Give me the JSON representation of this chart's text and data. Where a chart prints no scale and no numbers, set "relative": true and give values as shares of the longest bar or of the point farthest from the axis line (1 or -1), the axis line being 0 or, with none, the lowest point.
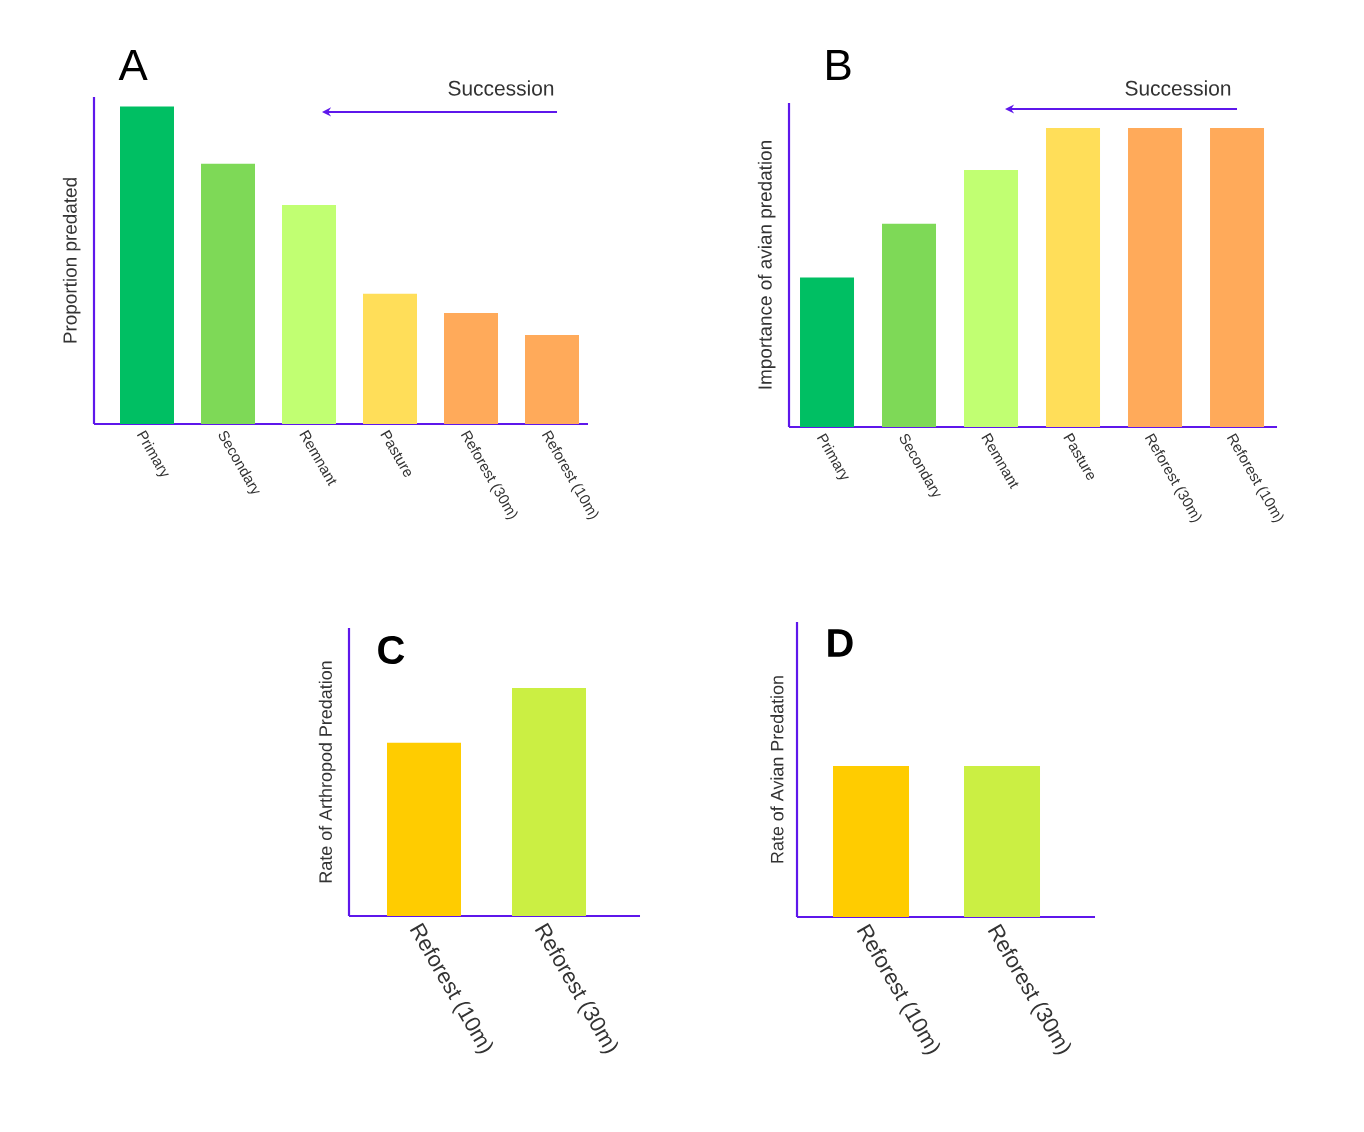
{
  "chart_data": [
    {
      "type": "bar",
      "title": "A",
      "ylabel": "Proportion predated",
      "relative": true,
      "categories": [
        "Primary",
        "Secondary",
        "Remnant",
        "Pasture",
        "Reforest (30m)",
        "Reforest (10m)"
      ],
      "values": [
        1,
        0.82,
        0.69,
        0.41,
        0.35,
        0.28
      ],
      "colors": [
        "#00bf63",
        "#7ed957",
        "#c1ff72",
        "#ffde59",
        "#ffaa5a",
        "#ffaa5a"
      ],
      "annotations": [
        "Succession"
      ]
    },
    {
      "type": "bar",
      "title": "B",
      "ylabel": "Importance of avian predation",
      "relative": true,
      "categories": [
        "Primary",
        "Secondary",
        "Remnant",
        "Pasture",
        "Reforest (30m)",
        "Reforest (10m)"
      ],
      "values": [
        0.5,
        0.68,
        0.86,
        1,
        1,
        1
      ],
      "colors": [
        "#00bf63",
        "#7ed957",
        "#c1ff72",
        "#ffde59",
        "#ffaa5a",
        "#ffaa5a"
      ],
      "annotations": [
        "Succession"
      ]
    },
    {
      "type": "bar",
      "title": "C",
      "ylabel": "Rate of Arthropod Predation",
      "relative": true,
      "categories": [
        "Reforest (10m)",
        "Reforest (30m)"
      ],
      "values": [
        0.76,
        1
      ],
      "colors": [
        "#ffcc00",
        "#cbef43"
      ]
    },
    {
      "type": "bar",
      "title": "D",
      "ylabel": "Rate of Avian Predation",
      "relative": true,
      "categories": [
        "Reforest (10m)",
        "Reforest (30m)"
      ],
      "values": [
        1,
        1
      ],
      "colors": [
        "#ffcc00",
        "#cbef43"
      ]
    }
  ]
}
